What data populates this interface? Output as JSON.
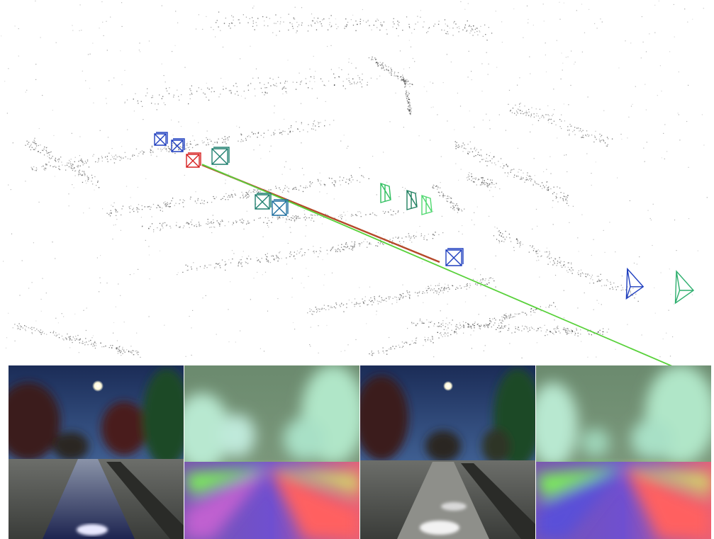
{
  "figure": {
    "top_panel": {
      "content": "3d-point-cloud-with-camera-poses",
      "point_color": "#000000",
      "trajectory_color": "#5bd03a",
      "trajectory_reference_color": "#c0392b",
      "camera_colors": [
        "#1f3fbf",
        "#1f7f4f",
        "#4fd86f",
        "#d62020"
      ]
    },
    "bottom_strip": {
      "tiles": [
        {
          "kind": "rgb-night-street-with-moon"
        },
        {
          "kind": "feature-visualization"
        },
        {
          "kind": "rgb-night-street-with-moon"
        },
        {
          "kind": "feature-visualization"
        }
      ]
    }
  }
}
